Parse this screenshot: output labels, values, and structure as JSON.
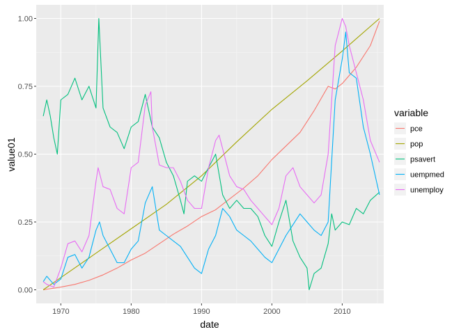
{
  "chart_data": {
    "type": "line",
    "xlabel": "date",
    "ylabel": "value01",
    "xlim": [
      1966.5,
      2015.9
    ],
    "ylim": [
      -0.05,
      1.05
    ],
    "x_ticks": [
      1970,
      1980,
      1990,
      2000,
      2010
    ],
    "x_tick_labels": [
      "1970",
      "1980",
      "1990",
      "2000",
      "2010"
    ],
    "y_ticks": [
      0,
      0.25,
      0.5,
      0.75,
      1
    ],
    "y_tick_labels": [
      "0.00",
      "0.25",
      "0.50",
      "0.75",
      "1.00"
    ],
    "grid": true,
    "legend": {
      "title": "variable",
      "position": "right"
    },
    "series": [
      {
        "name": "pce",
        "color": "#F8766D",
        "x": [
          1967.5,
          1970,
          1972,
          1974,
          1976,
          1978,
          1980,
          1982,
          1984,
          1986,
          1988,
          1990,
          1992,
          1994,
          1996,
          1998,
          2000,
          2002,
          2004,
          2006,
          2008,
          2009,
          2010,
          2012,
          2014,
          2015.3
        ],
        "y": [
          0,
          0.01,
          0.02,
          0.035,
          0.055,
          0.08,
          0.11,
          0.135,
          0.17,
          0.205,
          0.235,
          0.27,
          0.295,
          0.335,
          0.375,
          0.42,
          0.48,
          0.53,
          0.58,
          0.66,
          0.75,
          0.74,
          0.76,
          0.82,
          0.9,
          0.99
        ]
      },
      {
        "name": "pop",
        "color": "#A3A500",
        "x": [
          1967.5,
          1970,
          1975,
          1980,
          1985,
          1990,
          1995,
          2000,
          2005,
          2010,
          2015.3
        ],
        "y": [
          0,
          0.045,
          0.135,
          0.225,
          0.315,
          0.42,
          0.545,
          0.665,
          0.77,
          0.88,
          1.0
        ]
      },
      {
        "name": "psavert",
        "color": "#00BF7D",
        "x": [
          1967.5,
          1968,
          1968.5,
          1969,
          1969.5,
          1970,
          1971,
          1972,
          1973,
          1974,
          1975,
          1975.4,
          1976,
          1977,
          1978,
          1979,
          1980,
          1981,
          1982,
          1983,
          1984,
          1985,
          1986,
          1987,
          1987.5,
          1988,
          1989,
          1990,
          1991,
          1992,
          1993,
          1994,
          1995,
          1996,
          1997,
          1998,
          1999,
          2000,
          2001,
          2002,
          2003,
          2004,
          2005,
          2005.3,
          2006,
          2007,
          2008,
          2008.5,
          2009,
          2010,
          2011,
          2012,
          2013,
          2014,
          2015.3
        ],
        "y": [
          0.64,
          0.7,
          0.64,
          0.56,
          0.5,
          0.7,
          0.72,
          0.78,
          0.7,
          0.75,
          0.67,
          1.0,
          0.67,
          0.6,
          0.58,
          0.52,
          0.6,
          0.62,
          0.72,
          0.6,
          0.56,
          0.47,
          0.42,
          0.33,
          0.28,
          0.4,
          0.42,
          0.4,
          0.45,
          0.5,
          0.35,
          0.3,
          0.33,
          0.3,
          0.3,
          0.27,
          0.2,
          0.16,
          0.25,
          0.33,
          0.18,
          0.12,
          0.08,
          0.0,
          0.06,
          0.08,
          0.17,
          0.28,
          0.22,
          0.25,
          0.24,
          0.3,
          0.28,
          0.33,
          0.36
        ]
      },
      {
        "name": "uempmed",
        "color": "#00B0F6",
        "x": [
          1967.5,
          1968,
          1969,
          1970,
          1971,
          1972,
          1973,
          1974,
          1975,
          1975.5,
          1976,
          1977,
          1978,
          1979,
          1980,
          1981,
          1982,
          1983,
          1984,
          1985,
          1986,
          1987,
          1988,
          1989,
          1990,
          1991,
          1992,
          1993,
          1994,
          1995,
          1996,
          1997,
          1998,
          1999,
          2000,
          2001,
          2002,
          2003,
          2004,
          2005,
          2006,
          2007,
          2008,
          2009,
          2010,
          2010.5,
          2011,
          2012,
          2013,
          2014,
          2015.3
        ],
        "y": [
          0.03,
          0.05,
          0.02,
          0.04,
          0.12,
          0.13,
          0.08,
          0.12,
          0.22,
          0.25,
          0.2,
          0.15,
          0.1,
          0.1,
          0.15,
          0.18,
          0.32,
          0.38,
          0.22,
          0.2,
          0.18,
          0.16,
          0.12,
          0.08,
          0.06,
          0.15,
          0.2,
          0.3,
          0.27,
          0.22,
          0.2,
          0.18,
          0.15,
          0.12,
          0.1,
          0.15,
          0.2,
          0.24,
          0.28,
          0.25,
          0.22,
          0.2,
          0.25,
          0.7,
          0.85,
          0.95,
          0.8,
          0.78,
          0.6,
          0.5,
          0.35
        ]
      },
      {
        "name": "unemploy",
        "color": "#E76BF3",
        "x": [
          1967.5,
          1968,
          1969,
          1970,
          1971,
          1972,
          1973,
          1974,
          1975,
          1975.3,
          1976,
          1977,
          1978,
          1979,
          1980,
          1981,
          1982,
          1982.8,
          1983,
          1984,
          1985,
          1986,
          1987,
          1988,
          1989,
          1990,
          1991,
          1992,
          1992.5,
          1993,
          1994,
          1995,
          1996,
          1997,
          1998,
          1999,
          2000,
          2001,
          2002,
          2003,
          2004,
          2005,
          2006,
          2007,
          2008,
          2009,
          2010,
          2010.5,
          2011,
          2012,
          2013,
          2014,
          2015.3
        ],
        "y": [
          0.03,
          0.02,
          0.01,
          0.08,
          0.17,
          0.18,
          0.14,
          0.2,
          0.4,
          0.45,
          0.38,
          0.37,
          0.3,
          0.28,
          0.45,
          0.47,
          0.68,
          0.73,
          0.6,
          0.46,
          0.45,
          0.45,
          0.4,
          0.33,
          0.3,
          0.3,
          0.45,
          0.55,
          0.57,
          0.52,
          0.42,
          0.38,
          0.37,
          0.33,
          0.3,
          0.27,
          0.24,
          0.3,
          0.42,
          0.45,
          0.38,
          0.35,
          0.32,
          0.35,
          0.5,
          0.9,
          1.0,
          0.97,
          0.9,
          0.8,
          0.7,
          0.55,
          0.47
        ]
      }
    ]
  }
}
